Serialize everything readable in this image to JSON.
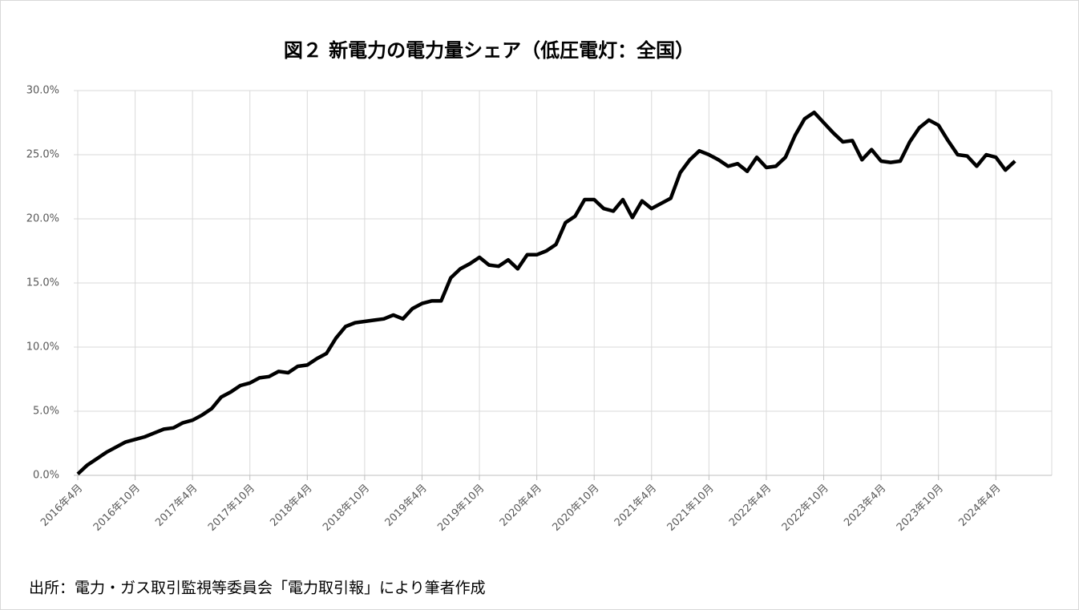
{
  "chart_data": {
    "type": "line",
    "title": "図２ 新電力の電力量シェア（低圧電灯：全国）",
    "source": "出所：電力・ガス取引監視等委員会「電力取引報」により筆者作成",
    "categories": [
      "2016年4月",
      null,
      null,
      null,
      null,
      null,
      "2016年10月",
      null,
      null,
      null,
      null,
      null,
      "2017年4月",
      null,
      null,
      null,
      null,
      null,
      "2017年10月",
      null,
      null,
      null,
      null,
      null,
      "2018年4月",
      null,
      null,
      null,
      null,
      null,
      "2018年10月",
      null,
      null,
      null,
      null,
      null,
      "2019年4月",
      null,
      null,
      null,
      null,
      null,
      "2019年10月",
      null,
      null,
      null,
      null,
      null,
      "2020年4月",
      null,
      null,
      null,
      null,
      null,
      "2020年10月",
      null,
      null,
      null,
      null,
      null,
      "2021年4月",
      null,
      null,
      null,
      null,
      null,
      "2021年10月",
      null,
      null,
      null,
      null,
      null,
      "2022年4月",
      null,
      null,
      null,
      null,
      null,
      "2022年10月",
      null,
      null,
      null,
      null,
      null,
      "2023年4月",
      null,
      null,
      null,
      null,
      null,
      "2023年10月",
      null,
      null,
      null,
      null,
      null,
      "2024年4月",
      null,
      null
    ],
    "series": [
      {
        "color": "#000000",
        "values": [
          0.1,
          0.8,
          1.3,
          1.8,
          2.2,
          2.6,
          2.8,
          3.0,
          3.3,
          3.6,
          3.7,
          4.1,
          4.3,
          4.7,
          5.2,
          6.1,
          6.5,
          7.0,
          7.2,
          7.6,
          7.7,
          8.1,
          8.0,
          8.5,
          8.6,
          9.1,
          9.5,
          10.7,
          11.6,
          11.9,
          12.0,
          12.1,
          12.2,
          12.5,
          12.2,
          13.0,
          13.4,
          13.6,
          13.6,
          15.4,
          16.1,
          16.5,
          17.0,
          16.4,
          16.3,
          16.8,
          16.1,
          17.2,
          17.2,
          17.5,
          18.0,
          19.7,
          20.2,
          21.5,
          21.5,
          20.8,
          20.6,
          21.5,
          20.1,
          21.4,
          20.8,
          21.2,
          21.6,
          23.6,
          24.6,
          25.3,
          25.0,
          24.6,
          24.1,
          24.3,
          23.7,
          24.8,
          24.0,
          24.1,
          24.8,
          26.5,
          27.8,
          28.3,
          27.5,
          26.7,
          26.0,
          26.1,
          24.6,
          25.4,
          24.5,
          24.4,
          24.5,
          26.0,
          27.1,
          27.7,
          27.3,
          26.1,
          25.0,
          24.9,
          24.1,
          25.0,
          24.8,
          23.8,
          24.5
        ]
      }
    ],
    "ylim": [
      0,
      30
    ],
    "yticks": [
      {
        "value": 0,
        "label": "0.0%"
      },
      {
        "value": 5,
        "label": "5.0%"
      },
      {
        "value": 10,
        "label": "10.0%"
      },
      {
        "value": 15,
        "label": "15.0%"
      },
      {
        "value": 20,
        "label": "20.0%"
      },
      {
        "value": 25,
        "label": "25.0%"
      },
      {
        "value": 30,
        "label": "30.0%"
      }
    ],
    "grid": true
  }
}
